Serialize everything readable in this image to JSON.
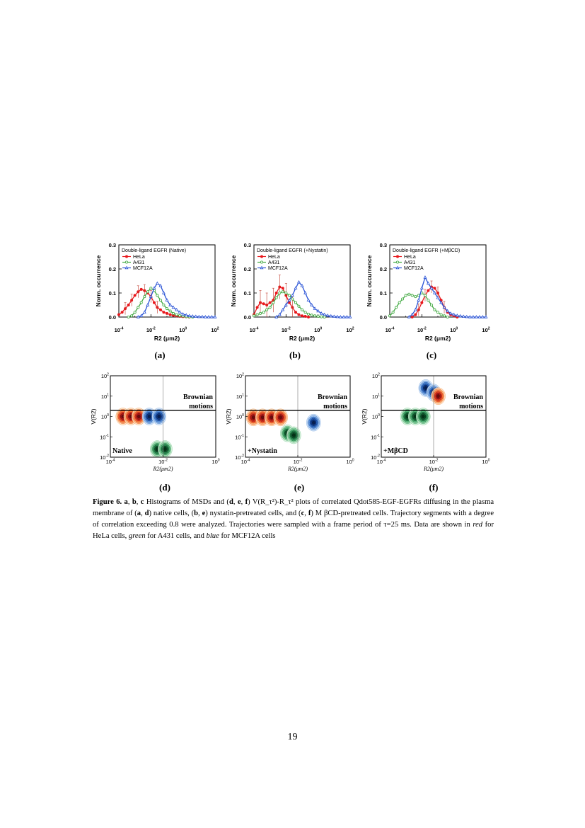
{
  "chart_data": [
    {
      "type": "line",
      "panel": "(a)",
      "title": "Double-ligand EGFR (Native)",
      "xlabel": "R2 (μm2)",
      "ylabel": "Norm. occurrence",
      "xscale": "log",
      "xlim": [
        0.0001,
        100
      ],
      "ylim": [
        0,
        0.3
      ],
      "yticks": [
        "0.0",
        "0.1",
        "0.2",
        "0.3"
      ],
      "xticks": [
        "10-4",
        "10-2",
        "100",
        "102"
      ],
      "series": [
        {
          "name": "HeLa",
          "color": "#e8181c",
          "marker": "filled-circle",
          "x": [
            0.0001,
            0.00016,
            0.00025,
            0.0004,
            0.00063,
            0.001,
            0.0016,
            0.0025,
            0.004,
            0.0063,
            0.01,
            0.016,
            0.025,
            0.04,
            0.063,
            0.1,
            0.16,
            0.25,
            0.4,
            0.63,
            1,
            1.6,
            2.5
          ],
          "y": [
            0.01,
            0.02,
            0.035,
            0.05,
            0.07,
            0.09,
            0.105,
            0.115,
            0.11,
            0.1,
            0.085,
            0.06,
            0.04,
            0.03,
            0.02,
            0.015,
            0.01,
            0.007,
            0.005,
            0.003,
            0.002,
            0.001,
            0.0
          ]
        },
        {
          "name": "A431",
          "color": "#3fa83f",
          "marker": "open-circle",
          "x": [
            0.0004,
            0.00063,
            0.001,
            0.0016,
            0.0025,
            0.004,
            0.0063,
            0.01,
            0.016,
            0.025,
            0.04,
            0.063,
            0.1,
            0.16,
            0.25,
            0.4,
            0.63,
            1,
            1.6,
            2.5,
            4
          ],
          "y": [
            0.0,
            0.005,
            0.02,
            0.04,
            0.06,
            0.085,
            0.105,
            0.12,
            0.11,
            0.09,
            0.07,
            0.05,
            0.035,
            0.025,
            0.015,
            0.01,
            0.006,
            0.004,
            0.002,
            0.001,
            0.0
          ]
        },
        {
          "name": "MCF12A",
          "color": "#2b54d6",
          "marker": "open-triangle",
          "x": [
            0.0016,
            0.0025,
            0.004,
            0.0063,
            0.01,
            0.016,
            0.025,
            0.04,
            0.063,
            0.1,
            0.16,
            0.25,
            0.4,
            0.63,
            1,
            1.6,
            2.5,
            4,
            6.3,
            10,
            16,
            25,
            40,
            63,
            100
          ],
          "y": [
            0.0,
            0.005,
            0.02,
            0.05,
            0.085,
            0.12,
            0.14,
            0.13,
            0.1,
            0.07,
            0.05,
            0.04,
            0.03,
            0.02,
            0.012,
            0.008,
            0.005,
            0.003,
            0.002,
            0.001,
            0.001,
            0.0,
            0.0,
            0.0,
            0.0
          ]
        }
      ]
    },
    {
      "type": "line",
      "panel": "(b)",
      "title": "Double-ligand EGFR (+Nystatin)",
      "xlabel": "R2 (μm2)",
      "ylabel": "Norm. occurrence",
      "xscale": "log",
      "xlim": [
        0.0001,
        100
      ],
      "ylim": [
        0,
        0.3
      ],
      "yticks": [
        "0.0",
        "0.1",
        "0.2",
        "0.3"
      ],
      "xticks": [
        "10-4",
        "10-2",
        "100",
        "102"
      ],
      "series": [
        {
          "name": "HeLa",
          "color": "#e8181c",
          "marker": "filled-circle",
          "x": [
            0.0001,
            0.00016,
            0.00025,
            0.0004,
            0.00063,
            0.001,
            0.0016,
            0.0025,
            0.004,
            0.0063,
            0.01,
            0.016,
            0.025,
            0.04,
            0.063,
            0.1,
            0.16,
            0.25
          ],
          "y": [
            0.01,
            0.04,
            0.06,
            0.055,
            0.05,
            0.06,
            0.07,
            0.1,
            0.125,
            0.12,
            0.09,
            0.06,
            0.04,
            0.02,
            0.01,
            0.005,
            0.003,
            0.0
          ]
        },
        {
          "name": "A431",
          "color": "#3fa83f",
          "marker": "open-circle",
          "x": [
            0.0001,
            0.00016,
            0.00025,
            0.0004,
            0.00063,
            0.001,
            0.0016,
            0.0025,
            0.004,
            0.0063,
            0.01,
            0.016,
            0.025,
            0.04,
            0.063,
            0.1,
            0.16,
            0.25,
            0.4,
            0.63,
            1,
            1.6,
            2.5
          ],
          "y": [
            0.005,
            0.01,
            0.015,
            0.02,
            0.03,
            0.04,
            0.06,
            0.08,
            0.1,
            0.105,
            0.1,
            0.09,
            0.075,
            0.06,
            0.045,
            0.03,
            0.02,
            0.012,
            0.008,
            0.005,
            0.003,
            0.001,
            0.0
          ]
        },
        {
          "name": "MCF12A",
          "color": "#2b54d6",
          "marker": "open-triangle",
          "x": [
            0.0025,
            0.004,
            0.0063,
            0.01,
            0.016,
            0.025,
            0.04,
            0.063,
            0.1,
            0.16,
            0.25,
            0.4,
            0.63,
            1,
            1.6,
            2.5,
            4,
            6.3,
            10,
            16,
            25,
            40,
            63,
            100
          ],
          "y": [
            0.0,
            0.01,
            0.03,
            0.05,
            0.07,
            0.09,
            0.12,
            0.145,
            0.13,
            0.1,
            0.07,
            0.05,
            0.035,
            0.025,
            0.015,
            0.01,
            0.006,
            0.004,
            0.002,
            0.001,
            0.0,
            0.0,
            0.0,
            0.0
          ]
        }
      ]
    },
    {
      "type": "line",
      "panel": "(c)",
      "title": "Double-ligand EGFR (+MβCD)",
      "xlabel": "R2 (μm2)",
      "ylabel": "Norm. occurrence",
      "xscale": "log",
      "xlim": [
        0.0001,
        100
      ],
      "ylim": [
        0,
        0.3
      ],
      "yticks": [
        "0.0",
        "0.1",
        "0.2",
        "0.3"
      ],
      "xticks": [
        "10-4",
        "10-2",
        "100",
        "102"
      ],
      "series": [
        {
          "name": "HeLa",
          "color": "#e8181c",
          "marker": "filled-circle",
          "x": [
            0.0025,
            0.004,
            0.0063,
            0.01,
            0.016,
            0.025,
            0.04,
            0.063,
            0.1,
            0.16,
            0.25,
            0.4,
            0.63,
            1,
            1.6
          ],
          "y": [
            0.0,
            0.01,
            0.03,
            0.06,
            0.09,
            0.11,
            0.125,
            0.12,
            0.1,
            0.07,
            0.04,
            0.02,
            0.01,
            0.005,
            0.0
          ]
        },
        {
          "name": "A431",
          "color": "#3fa83f",
          "marker": "open-circle",
          "x": [
            0.0001,
            0.00016,
            0.00025,
            0.0004,
            0.00063,
            0.001,
            0.0016,
            0.0025,
            0.004,
            0.0063,
            0.01,
            0.016,
            0.025,
            0.04,
            0.063,
            0.1,
            0.16,
            0.25,
            0.4
          ],
          "y": [
            0.005,
            0.02,
            0.04,
            0.06,
            0.075,
            0.09,
            0.095,
            0.09,
            0.085,
            0.09,
            0.1,
            0.09,
            0.07,
            0.05,
            0.03,
            0.02,
            0.01,
            0.005,
            0.0
          ]
        },
        {
          "name": "MCF12A",
          "color": "#2b54d6",
          "marker": "open-triangle",
          "x": [
            0.0016,
            0.0025,
            0.004,
            0.0063,
            0.01,
            0.016,
            0.025,
            0.04,
            0.063,
            0.1,
            0.16,
            0.25,
            0.4,
            0.63,
            1,
            1.6,
            2.5,
            4,
            6.3,
            10,
            16,
            25,
            40,
            63,
            100
          ],
          "y": [
            0.0,
            0.01,
            0.03,
            0.07,
            0.12,
            0.165,
            0.14,
            0.12,
            0.1,
            0.08,
            0.06,
            0.04,
            0.025,
            0.015,
            0.01,
            0.006,
            0.004,
            0.002,
            0.001,
            0.0,
            0.0,
            0.0,
            0.0,
            0.0,
            0.0
          ]
        }
      ]
    },
    {
      "type": "heatmap",
      "panel": "(d)",
      "label": "Native",
      "annotation": [
        "Brownian",
        "motions"
      ],
      "xlabel": "R2(μm2)",
      "ylabel": "V(R2)",
      "xscale": "log",
      "yscale": "log",
      "xlim": [
        0.0001,
        1
      ],
      "ylim": [
        0.01,
        100
      ],
      "xticks": [
        "10-4",
        "10-2",
        "100"
      ],
      "yticks": [
        "10-2",
        "10-1",
        "100",
        "101",
        "102"
      ],
      "reference_lines": {
        "x": 0.01,
        "y": 2
      },
      "clusters": [
        {
          "cell": "HeLa",
          "color": "red",
          "peaks": [
            {
              "x": 0.0003,
              "y": 1
            },
            {
              "x": 0.0006,
              "y": 1
            },
            {
              "x": 0.0012,
              "y": 1
            }
          ]
        },
        {
          "cell": "MCF12A",
          "color": "blue",
          "peaks": [
            {
              "x": 0.003,
              "y": 1
            },
            {
              "x": 0.007,
              "y": 1
            }
          ]
        },
        {
          "cell": "A431",
          "color": "green",
          "peaks": [
            {
              "x": 0.006,
              "y": 0.025
            },
            {
              "x": 0.012,
              "y": 0.025
            }
          ]
        }
      ]
    },
    {
      "type": "heatmap",
      "panel": "(e)",
      "label": "+Nystatin",
      "annotation": [
        "Brownian",
        "motions"
      ],
      "xlabel": "R2(μm2)",
      "ylabel": "V(R2)",
      "xscale": "log",
      "yscale": "log",
      "xlim": [
        0.0001,
        1
      ],
      "ylim": [
        0.01,
        100
      ],
      "xticks": [
        "10-4",
        "10-2",
        "100"
      ],
      "yticks": [
        "10-2",
        "10-1",
        "100",
        "101",
        "102"
      ],
      "reference_lines": {
        "x": 0.01,
        "y": 2
      },
      "clusters": [
        {
          "cell": "HeLa",
          "color": "red",
          "peaks": [
            {
              "x": 0.0002,
              "y": 0.9
            },
            {
              "x": 0.00045,
              "y": 0.9
            },
            {
              "x": 0.001,
              "y": 0.9
            },
            {
              "x": 0.0022,
              "y": 0.9
            }
          ]
        },
        {
          "cell": "A431",
          "color": "green",
          "peaks": [
            {
              "x": 0.004,
              "y": 0.15
            },
            {
              "x": 0.007,
              "y": 0.12
            }
          ]
        },
        {
          "cell": "MCF12A",
          "color": "blue",
          "peaks": [
            {
              "x": 0.04,
              "y": 0.5
            }
          ]
        }
      ]
    },
    {
      "type": "heatmap",
      "panel": "(f)",
      "label": "+MβCD",
      "annotation": [
        "Brownian",
        "motions"
      ],
      "xlabel": "R2(μm2)",
      "ylabel": "V(R2)",
      "xscale": "log",
      "yscale": "log",
      "xlim": [
        0.0001,
        1
      ],
      "ylim": [
        0.01,
        100
      ],
      "xticks": [
        "10-4",
        "10-2",
        "100"
      ],
      "yticks": [
        "10-2",
        "10-1",
        "100",
        "101",
        "102"
      ],
      "reference_lines": {
        "x": 0.01,
        "y": 2
      },
      "clusters": [
        {
          "cell": "MCF12A",
          "color": "blue",
          "peaks": [
            {
              "x": 0.005,
              "y": 25
            },
            {
              "x": 0.01,
              "y": 15
            }
          ]
        },
        {
          "cell": "HeLa",
          "color": "red",
          "peaks": [
            {
              "x": 0.015,
              "y": 10
            }
          ]
        },
        {
          "cell": "A431",
          "color": "green",
          "peaks": [
            {
              "x": 0.001,
              "y": 1
            },
            {
              "x": 0.002,
              "y": 1
            },
            {
              "x": 0.004,
              "y": 1
            }
          ]
        }
      ]
    }
  ],
  "panel_letters": [
    "(a)",
    "(b)",
    "(c)",
    "(d)",
    "(e)",
    "(f)"
  ],
  "caption": {
    "label": "Figure 6.",
    "segments": [
      {
        "t": "a",
        "s": "b"
      },
      {
        "t": ", "
      },
      {
        "t": "b",
        "s": "b"
      },
      {
        "t": ", "
      },
      {
        "t": "c",
        "s": "b"
      },
      {
        "t": " Histograms of MSDs and ("
      },
      {
        "t": "d",
        "s": "b"
      },
      {
        "t": ", "
      },
      {
        "t": "e",
        "s": "b"
      },
      {
        "t": ", "
      },
      {
        "t": "f",
        "s": "b"
      },
      {
        "t": ") V(R_τ²)-R_τ² plots of correlated Qdot585-EGF-EGFRs diffusing in the plasma membrane of ("
      },
      {
        "t": "a",
        "s": "b"
      },
      {
        "t": ", "
      },
      {
        "t": "d",
        "s": "b"
      },
      {
        "t": ") native cells, ("
      },
      {
        "t": "b",
        "s": "b"
      },
      {
        "t": ", "
      },
      {
        "t": "e",
        "s": "b"
      },
      {
        "t": ") nystatin-pretreated cells, and ("
      },
      {
        "t": "c",
        "s": "b"
      },
      {
        "t": ", "
      },
      {
        "t": "f",
        "s": "b"
      },
      {
        "t": ") M βCD-pretreated cells. Trajectory segments with a degree of correlation exceeding 0.8 were analyzed. Trajectories were sampled with a frame period of τ=25 ms. Data are shown in "
      },
      {
        "t": "red",
        "s": "i"
      },
      {
        "t": " for HeLa cells, "
      },
      {
        "t": "green",
        "s": "i"
      },
      {
        "t": " for A431 cells, and "
      },
      {
        "t": "blue",
        "s": "i"
      },
      {
        "t": " for MCF12A cells"
      }
    ]
  },
  "page_number": "19"
}
